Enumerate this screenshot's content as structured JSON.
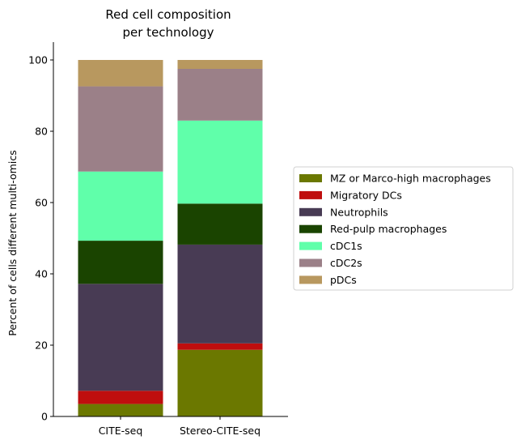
{
  "chart_data": {
    "type": "bar",
    "stacked": true,
    "title_lines": [
      "Red cell composition",
      "per technology"
    ],
    "xlabel": "",
    "ylabel": "Percent of cells different multi-omics",
    "ylim": [
      0,
      105
    ],
    "yticks": [
      0,
      20,
      40,
      60,
      80,
      100
    ],
    "categories": [
      "CITE-seq",
      "Stereo-CITE-seq"
    ],
    "legend_position": "right",
    "series": [
      {
        "name": "MZ or Marco-high macrophages",
        "color": "#6b7800",
        "values": [
          3.5,
          18.7
        ]
      },
      {
        "name": "Migratory DCs",
        "color": "#bf0e0e",
        "values": [
          3.7,
          1.8
        ]
      },
      {
        "name": "Neutrophils",
        "color": "#483b54",
        "values": [
          30.0,
          27.7
        ]
      },
      {
        "name": "Red-pulp macrophages",
        "color": "#1a4400",
        "values": [
          12.1,
          11.5
        ]
      },
      {
        "name": "cDC1s",
        "color": "#60ffaa",
        "values": [
          19.4,
          23.3
        ]
      },
      {
        "name": "cDC2s",
        "color": "#9b8088",
        "values": [
          23.9,
          14.5
        ]
      },
      {
        "name": "pDCs",
        "color": "#b8985f",
        "values": [
          7.4,
          2.5
        ]
      }
    ]
  }
}
